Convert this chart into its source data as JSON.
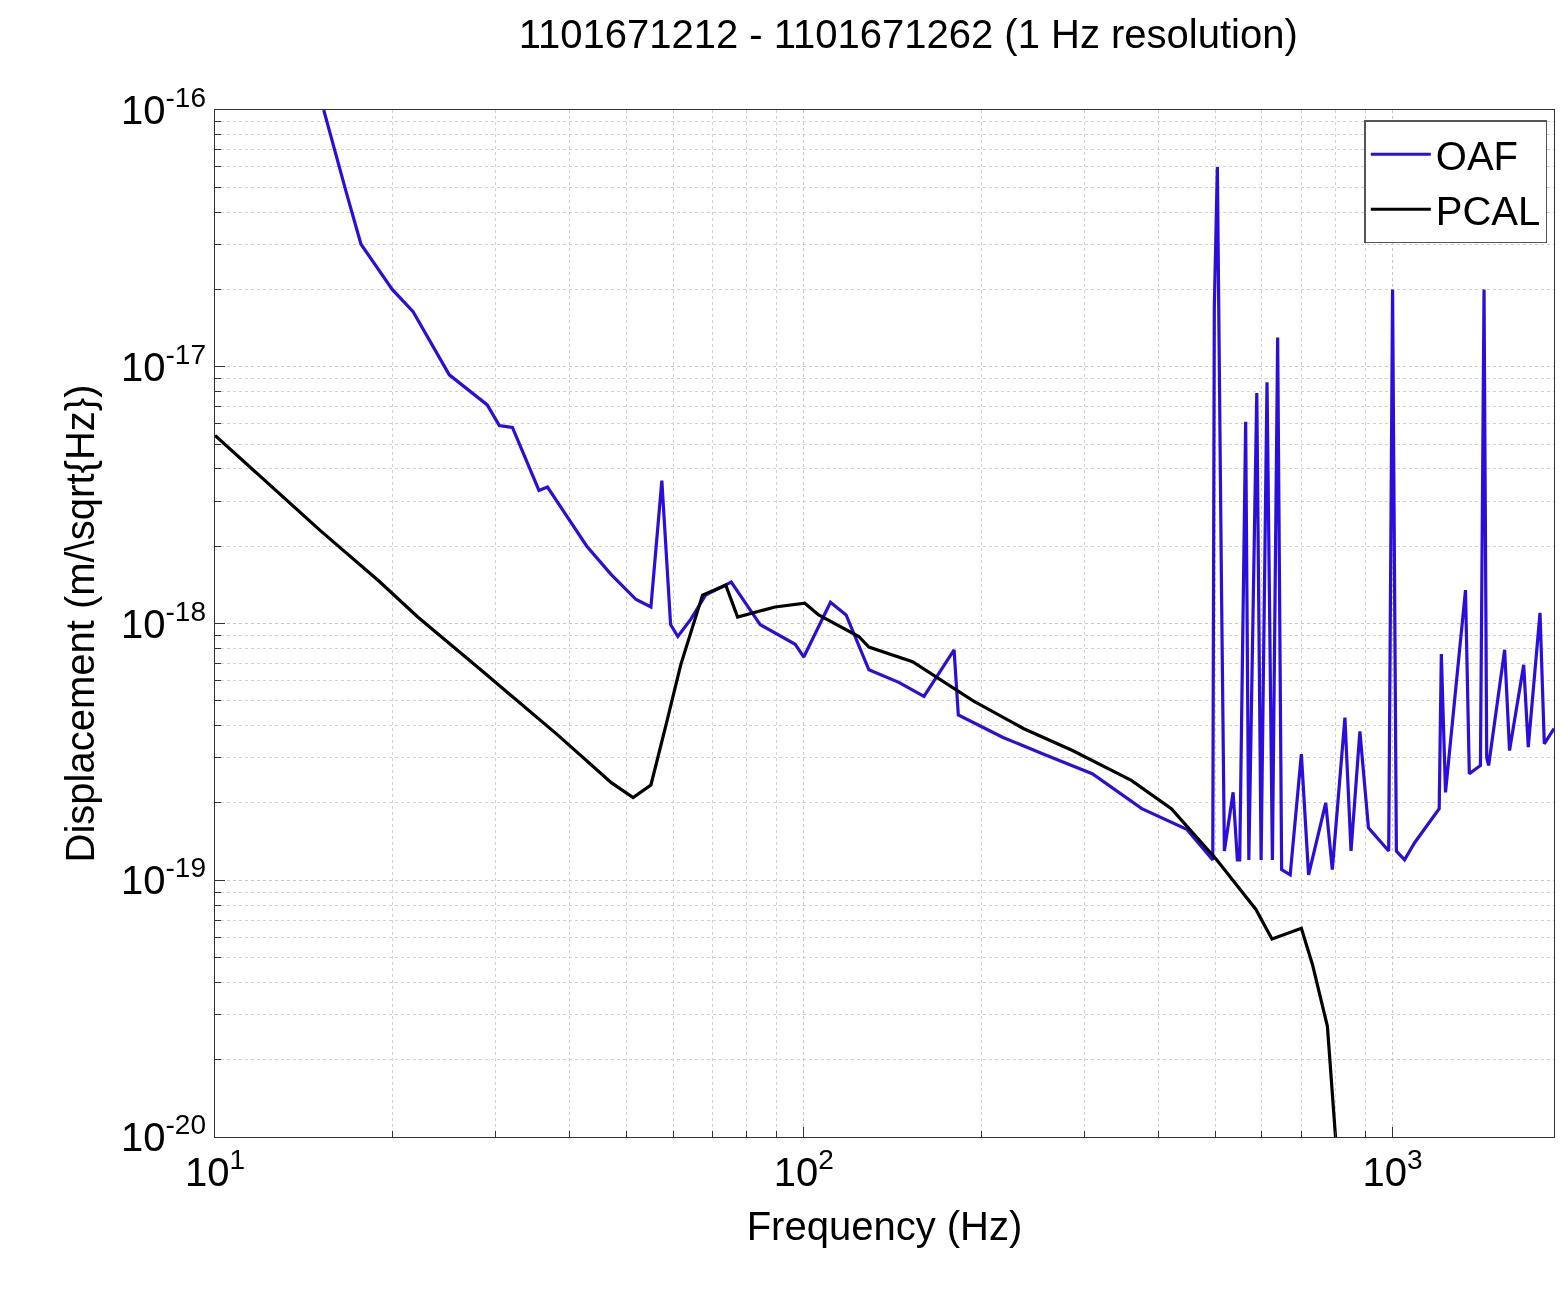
{
  "chart_data": {
    "type": "line",
    "title": "1101671212 - 1101671262 (1 Hz resolution)",
    "xlabel": "Frequency (Hz)",
    "ylabel": "Displacement (m/\\sqrt{Hz})",
    "log": "xy",
    "grid": true,
    "legend": "top right",
    "xlim": [
      10,
      1880
    ],
    "ylim": [
      1e-20,
      1e-16
    ],
    "xticks": [
      {
        "value": 10,
        "label": "10$^{1}$"
      },
      {
        "value": 100,
        "label": "10$^{2}$"
      },
      {
        "value": 1000,
        "label": "10$^{3}$"
      }
    ],
    "yticks": [
      {
        "value": 1e-20,
        "label": "10$^{-20}$"
      },
      {
        "value": 1e-19,
        "label": "10$^{-19}$"
      },
      {
        "value": 1e-18,
        "label": "10$^{-18}$"
      },
      {
        "value": 1e-17,
        "label": "10$^{-17}$"
      },
      {
        "value": 1e-16,
        "label": "10$^{-16}$"
      }
    ],
    "series": [
      {
        "name": "OAF",
        "color": "#2a0fdc",
        "x": [
          15.3,
          16.7,
          17.7,
          20,
          21.7,
          25,
          29,
          30.4,
          32,
          35.5,
          36.7,
          42.8,
          47.1,
          51.9,
          55,
          57.4,
          59.4,
          61.1,
          64.3,
          68.1,
          75.3,
          84.3,
          96.7,
          100,
          111,
          118,
          129,
          145,
          160,
          180,
          183,
          218,
          255,
          309,
          375,
          447,
          495,
          498,
          504,
          512,
          518,
          536,
          545,
          550,
          563,
          570,
          588,
          598,
          612,
          625,
          638,
          648,
          670,
          700,
          720,
          770,
          790,
          830,
          850,
          880,
          910,
          985,
          1000,
          1015,
          1048,
          1090,
          1200,
          1210,
          1230,
          1330,
          1350,
          1410,
          1430,
          1445,
          1456,
          1550,
          1580,
          1670,
          1700,
          1780,
          1810,
          1880
        ],
        "values": [
          1e-16,
          4.8e-17,
          3e-17,
          2e-17,
          1.64e-17,
          9.3e-18,
          7.1e-18,
          5.9e-18,
          5.8e-18,
          3.3e-18,
          3.4e-18,
          2e-18,
          1.55e-18,
          1.24e-18,
          1.16e-18,
          3.6e-18,
          9.9e-19,
          8.9e-19,
          1.04e-18,
          1.29e-18,
          1.45e-18,
          9.9e-19,
          8.3e-19,
          7.4e-19,
          1.21e-18,
          1.08e-18,
          6.6e-19,
          5.9e-19,
          5.2e-19,
          7.9e-19,
          4.4e-19,
          3.6e-19,
          3.1e-19,
          2.6e-19,
          1.9e-19,
          1.58e-19,
          1.2e-19,
          1.7e-17,
          6e-17,
          1.5e-18,
          1.3e-19,
          2.2e-19,
          1.2e-19,
          1.2e-19,
          6.1e-18,
          1.2e-19,
          7.9e-18,
          1.2e-19,
          8.7e-18,
          1.2e-19,
          1.3e-17,
          1.1e-19,
          1.05e-19,
          3.1e-19,
          1.05e-19,
          2e-19,
          1.1e-19,
          4.3e-19,
          1.3e-19,
          3.8e-19,
          1.6e-19,
          1.3e-19,
          2e-17,
          1.3e-19,
          1.2e-19,
          1.4e-19,
          1.9e-19,
          7.6e-19,
          2.2e-19,
          1.35e-18,
          2.6e-19,
          2.8e-19,
          2e-17,
          3e-19,
          2.8e-19,
          7.9e-19,
          3.2e-19,
          6.9e-19,
          3.3e-19,
          1.1e-18,
          3.4e-19,
          3.9e-19
        ]
      },
      {
        "name": "PCAL",
        "color": "#000000",
        "x": [
          10,
          15.1,
          19,
          22.1,
          28.5,
          38.1,
          47.1,
          51.3,
          55,
          58.3,
          61.8,
          67.3,
          73.7,
          77.2,
          89.4,
          100.4,
          106,
          124,
          129,
          153,
          194,
          236,
          286,
          360,
          421,
          503,
          586,
          624,
          700,
          731,
          775,
          800
        ],
        "values": [
          5.4e-18,
          2.3e-18,
          1.46e-18,
          1.06e-18,
          6.5e-19,
          3.7e-19,
          2.4e-19,
          2.1e-19,
          2.35e-19,
          4e-19,
          6.9e-19,
          1.29e-18,
          1.41e-18,
          1.06e-18,
          1.16e-18,
          1.2e-18,
          1.08e-18,
          8.9e-19,
          8.1e-19,
          7.1e-19,
          5e-19,
          3.9e-19,
          3.2e-19,
          2.45e-19,
          1.9e-19,
          1.2e-19,
          7.7e-20,
          5.9e-20,
          6.5e-20,
          4.7e-20,
          2.7e-20,
          1e-20
        ]
      }
    ]
  }
}
